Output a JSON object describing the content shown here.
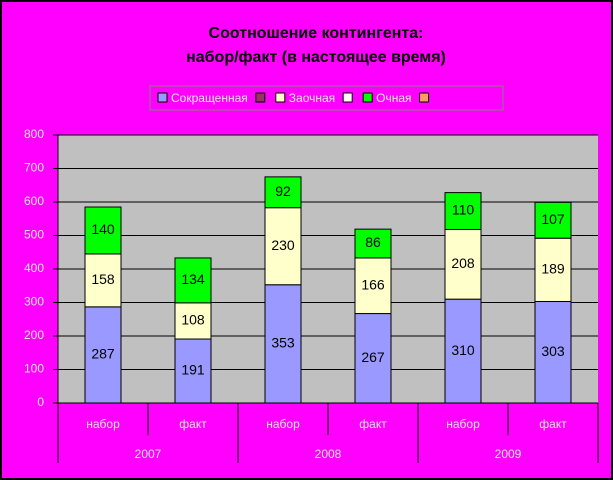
{
  "chart_data": {
    "type": "stacked_bar",
    "title": [
      "Соотношение контингента:",
      "набор/факт (в настоящее время)"
    ],
    "categories": [
      "набор",
      "факт",
      "набор",
      "факт",
      "набор",
      "факт"
    ],
    "groups": [
      "2007",
      "2008",
      "2009"
    ],
    "series": [
      {
        "name": "Сокращенная",
        "color": "#9999ff",
        "values": [
          287,
          191,
          353,
          267,
          310,
          303
        ]
      },
      {
        "name": "Заочная",
        "color": "#ffffcc",
        "values": [
          158,
          108,
          230,
          166,
          208,
          189
        ]
      },
      {
        "name": "Очная",
        "color": "#00ff00",
        "values": [
          140,
          134,
          92,
          86,
          110,
          107
        ]
      }
    ],
    "ylim": [
      0,
      800
    ],
    "yticks": [
      0,
      100,
      200,
      300,
      400,
      500,
      600,
      700,
      800
    ],
    "grid": true
  }
}
